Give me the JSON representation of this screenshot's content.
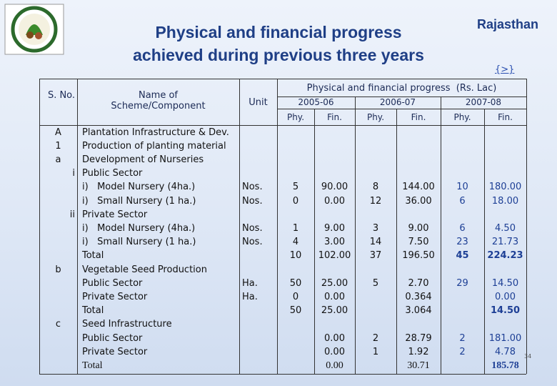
{
  "header": {
    "title_line1": "Physical and financial progress",
    "title_line2": "achieved during previous three years",
    "state": "Rajasthan",
    "link": "{>}"
  },
  "table": {
    "col_sno": "S. No.",
    "col_name": "Name of Scheme/Component",
    "col_unit": "Unit",
    "group_header": "Physical and financial progress  (Rs. Lac)",
    "years": [
      "2005-06",
      "2006-07",
      "2007-08"
    ],
    "subheaders": [
      "Phy.",
      "Fin.",
      "Phy.",
      "Fin.",
      "Phy.",
      "Fin."
    ],
    "rows": [
      {
        "sno": "A",
        "name": "Plantation Infrastructure & Dev."
      },
      {
        "sno": "1",
        "name": "Production of planting material"
      },
      {
        "sno": "a",
        "name": "Development of Nurseries"
      },
      {
        "sno": "i",
        "name": "Public Sector"
      },
      {
        "name": "i)   Model Nursery (4ha.)",
        "unit": "Nos.",
        "cells": [
          "5",
          "90.00",
          "8",
          "144.00",
          "10",
          "180.00"
        ]
      },
      {
        "name": "i)   Small Nursery (1 ha.)",
        "unit": "Nos.",
        "cells": [
          "0",
          "0.00",
          "12",
          "36.00",
          "6",
          "18.00"
        ]
      },
      {
        "sno": "ii",
        "name": "Private Sector"
      },
      {
        "name": "i)   Model Nursery (4ha.)",
        "unit": "Nos.",
        "cells": [
          "1",
          "9.00",
          "3",
          "9.00",
          "6",
          "4.50"
        ]
      },
      {
        "name": "i)   Small Nursery (1 ha.)",
        "unit": "Nos.",
        "cells": [
          "4",
          "3.00",
          "14",
          "7.50",
          "23",
          "21.73"
        ]
      },
      {
        "name": "Total",
        "cells": [
          "10",
          "102.00",
          "37",
          "196.50",
          "45",
          "224.23"
        ]
      },
      {
        "sno": "b",
        "name": "Vegetable Seed Production"
      },
      {
        "name": "Public Sector",
        "unit": "Ha.",
        "cells": [
          "50",
          "25.00",
          "5",
          "2.70",
          "29",
          "14.50"
        ]
      },
      {
        "name": "Private Sector",
        "unit": "Ha.",
        "cells": [
          "0",
          "0.00",
          null,
          "0.364",
          null,
          "0.00"
        ]
      },
      {
        "name": "Total",
        "cells": [
          "50",
          "25.00",
          null,
          "3.064",
          null,
          "14.50"
        ]
      },
      {
        "sno": "c",
        "name": "Seed Infrastructure"
      },
      {
        "name": "Public Sector",
        "cells": [
          null,
          "0.00",
          "2",
          "28.79",
          "2",
          "181.00"
        ]
      },
      {
        "name": "Private Sector",
        "cells": [
          null,
          "0.00",
          "1",
          "1.92",
          "2",
          "4.78"
        ]
      },
      {
        "name": "Total",
        "cells": [
          null,
          "0.00",
          null,
          "30.71",
          null,
          "185.78"
        ]
      }
    ]
  },
  "page_number": "34"
}
